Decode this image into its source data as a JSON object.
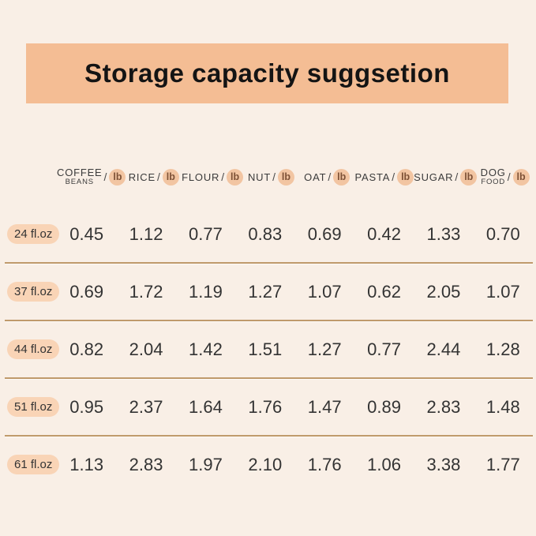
{
  "title": "Storage capacity suggsetion",
  "colors": {
    "background": "#f9efe6",
    "banner": "#f4bd94",
    "badge_bg": "#f2c5a2",
    "badge_text": "#7d5136",
    "pill_bg": "#f9d4b6",
    "text": "#333333",
    "divider": "#c09a6b"
  },
  "table": {
    "separator": "/",
    "unit": "lb",
    "columns": [
      {
        "line1": "COFFEE",
        "line2": "BEANS"
      },
      {
        "line1": "RICE",
        "line2": ""
      },
      {
        "line1": "FLOUR",
        "line2": ""
      },
      {
        "line1": "NUT",
        "line2": ""
      },
      {
        "line1": "OAT",
        "line2": ""
      },
      {
        "line1": "PASTA",
        "line2": ""
      },
      {
        "line1": "SUGAR",
        "line2": ""
      },
      {
        "line1": "DOG",
        "line2": "FOOD"
      }
    ],
    "rows": [
      {
        "label": "24 fl.oz",
        "values": [
          "0.45",
          "1.12",
          "0.77",
          "0.83",
          "0.69",
          "0.42",
          "1.33",
          "0.70"
        ]
      },
      {
        "label": "37 fl.oz",
        "values": [
          "0.69",
          "1.72",
          "1.19",
          "1.27",
          "1.07",
          "0.62",
          "2.05",
          "1.07"
        ]
      },
      {
        "label": "44 fl.oz",
        "values": [
          "0.82",
          "2.04",
          "1.42",
          "1.51",
          "1.27",
          "0.77",
          "2.44",
          "1.28"
        ]
      },
      {
        "label": "51 fl.oz",
        "values": [
          "0.95",
          "2.37",
          "1.64",
          "1.76",
          "1.47",
          "0.89",
          "2.83",
          "1.48"
        ]
      },
      {
        "label": "61 fl.oz",
        "values": [
          "1.13",
          "2.83",
          "1.97",
          "2.10",
          "1.76",
          "1.06",
          "3.38",
          "1.77"
        ]
      }
    ]
  },
  "chart_data": {
    "type": "table",
    "title": "Storage capacity suggsetion",
    "columns": [
      "COFFEE BEANS / lb",
      "RICE / lb",
      "FLOUR / lb",
      "NUT / lb",
      "OAT / lb",
      "PASTA / lb",
      "SUGAR / lb",
      "DOG FOOD / lb"
    ],
    "row_labels": [
      "24 fl.oz",
      "37 fl.oz",
      "44 fl.oz",
      "51 fl.oz",
      "61 fl.oz"
    ],
    "values": [
      [
        0.45,
        1.12,
        0.77,
        0.83,
        0.69,
        0.42,
        1.33,
        0.7
      ],
      [
        0.69,
        1.72,
        1.19,
        1.27,
        1.07,
        0.62,
        2.05,
        1.07
      ],
      [
        0.82,
        2.04,
        1.42,
        1.51,
        1.27,
        0.77,
        2.44,
        1.28
      ],
      [
        0.95,
        2.37,
        1.64,
        1.76,
        1.47,
        0.89,
        2.83,
        1.48
      ],
      [
        1.13,
        2.83,
        1.97,
        2.1,
        1.76,
        1.06,
        3.38,
        1.77
      ]
    ]
  }
}
